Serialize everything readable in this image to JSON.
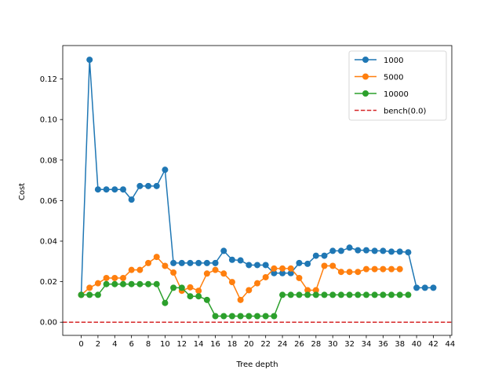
{
  "chart_data": {
    "type": "line",
    "title": "",
    "xlabel": "Tree depth",
    "ylabel": "Cost",
    "xlim": [
      -2.2,
      44.2
    ],
    "ylim": [
      -0.0065,
      0.1365
    ],
    "grid": false,
    "legend": "upper right",
    "x_ticks": [
      0,
      2,
      4,
      6,
      8,
      10,
      12,
      14,
      16,
      18,
      20,
      22,
      24,
      26,
      28,
      30,
      32,
      34,
      36,
      38,
      40,
      42,
      44
    ],
    "y_ticks": [
      0.0,
      0.02,
      0.04,
      0.06,
      0.08,
      0.1,
      0.12
    ],
    "y_tick_labels": [
      "0.00",
      "0.02",
      "0.04",
      "0.06",
      "0.08",
      "0.10",
      "0.12"
    ],
    "series": [
      {
        "name": "1000",
        "color": "#1f77b4",
        "marker": "circle",
        "x": [
          0,
          1,
          2,
          3,
          4,
          5,
          6,
          7,
          8,
          9,
          10,
          11,
          12,
          13,
          14,
          15,
          16,
          17,
          18,
          19,
          20,
          21,
          22,
          23,
          24,
          25,
          26,
          27,
          28,
          29,
          30,
          31,
          32,
          33,
          34,
          35,
          36,
          37,
          38,
          39,
          40,
          41,
          42
        ],
        "y": [
          0.0135,
          0.1295,
          0.0655,
          0.0655,
          0.0655,
          0.0655,
          0.0605,
          0.0672,
          0.0672,
          0.0672,
          0.0752,
          0.0292,
          0.0292,
          0.0292,
          0.0292,
          0.0292,
          0.0292,
          0.0352,
          0.0308,
          0.0305,
          0.0282,
          0.0282,
          0.0282,
          0.0242,
          0.0242,
          0.0242,
          0.0292,
          0.0288,
          0.0328,
          0.0328,
          0.0352,
          0.0352,
          0.0368,
          0.0355,
          0.0355,
          0.0352,
          0.0352,
          0.0348,
          0.0348,
          0.0345,
          0.017,
          0.017,
          0.017
        ]
      },
      {
        "name": "5000",
        "color": "#ff7f0e",
        "marker": "circle",
        "x": [
          0,
          1,
          2,
          3,
          4,
          5,
          6,
          7,
          8,
          9,
          10,
          11,
          12,
          13,
          14,
          15,
          16,
          17,
          18,
          19,
          20,
          21,
          22,
          23,
          24,
          25,
          26,
          27,
          28,
          29,
          30,
          31,
          32,
          33,
          34,
          35,
          36,
          37,
          38
        ],
        "y": [
          0.0135,
          0.017,
          0.0192,
          0.0218,
          0.0218,
          0.0218,
          0.0258,
          0.0258,
          0.0292,
          0.0322,
          0.0278,
          0.0245,
          0.0155,
          0.0172,
          0.0155,
          0.024,
          0.0258,
          0.024,
          0.0198,
          0.011,
          0.0158,
          0.0192,
          0.0222,
          0.0265,
          0.0265,
          0.0265,
          0.0218,
          0.0158,
          0.0158,
          0.0278,
          0.0278,
          0.0248,
          0.0248,
          0.0248,
          0.0262,
          0.0262,
          0.0262,
          0.0262,
          0.0262
        ]
      },
      {
        "name": "10000",
        "color": "#2ca02c",
        "marker": "circle",
        "x": [
          0,
          1,
          2,
          3,
          4,
          5,
          6,
          7,
          8,
          9,
          10,
          11,
          12,
          13,
          14,
          15,
          16,
          17,
          18,
          19,
          20,
          21,
          22,
          23,
          24,
          25,
          26,
          27,
          28,
          29,
          30,
          31,
          32,
          33,
          34,
          35,
          36,
          37,
          38,
          39
        ],
        "y": [
          0.0135,
          0.0135,
          0.0135,
          0.0188,
          0.0188,
          0.0188,
          0.0188,
          0.0188,
          0.0188,
          0.0188,
          0.0095,
          0.017,
          0.017,
          0.0128,
          0.0128,
          0.011,
          0.003,
          0.003,
          0.003,
          0.003,
          0.003,
          0.003,
          0.003,
          0.003,
          0.0135,
          0.0135,
          0.0135,
          0.0135,
          0.0135,
          0.0135,
          0.0135,
          0.0135,
          0.0135,
          0.0135,
          0.0135,
          0.0135,
          0.0135,
          0.0135,
          0.0135,
          0.0135
        ]
      }
    ],
    "reference_line": {
      "name": "bench(0.0)",
      "y": 0.0,
      "color": "#d62728",
      "style": "dashed"
    }
  }
}
